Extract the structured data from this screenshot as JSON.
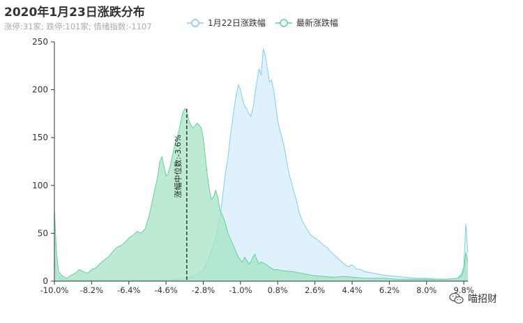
{
  "chart_data": {
    "type": "area",
    "title": "2020年1月23日涨跌分布",
    "subtitle": "涨停:31家; 跌停:101家; 情绪指数:-1107",
    "x_ticks": [
      "-10.0%",
      "-8.2%",
      "-6.4%",
      "-4.6%",
      "-2.8%",
      "-1.0%",
      "0.8%",
      "2.6%",
      "4.4%",
      "6.2%",
      "8.0%",
      "9.8%"
    ],
    "y_ticks": [
      "0",
      "50",
      "100",
      "150",
      "200",
      "250"
    ],
    "xlim": [
      -10.0,
      10.0
    ],
    "ylim": [
      0,
      250
    ],
    "median_line": {
      "x": -3.6,
      "label": "涨幅中位数:-3.6%"
    },
    "series": [
      {
        "name": "1月22日涨跌幅",
        "color": "#80cdf0",
        "fill": "#ddf1fb",
        "points": [
          [
            -10.0,
            28
          ],
          [
            -9.9,
            8
          ],
          [
            -9.7,
            3
          ],
          [
            -9.3,
            1
          ],
          [
            -8.5,
            1
          ],
          [
            -7.5,
            1
          ],
          [
            -6.5,
            1
          ],
          [
            -5.5,
            1
          ],
          [
            -4.5,
            1
          ],
          [
            -4.0,
            2
          ],
          [
            -3.6,
            3
          ],
          [
            -3.3,
            5
          ],
          [
            -3.0,
            8
          ],
          [
            -2.8,
            12
          ],
          [
            -2.6,
            20
          ],
          [
            -2.4,
            32
          ],
          [
            -2.2,
            45
          ],
          [
            -2.0,
            65
          ],
          [
            -1.9,
            82
          ],
          [
            -1.8,
            100
          ],
          [
            -1.7,
            117
          ],
          [
            -1.6,
            130
          ],
          [
            -1.5,
            150
          ],
          [
            -1.4,
            165
          ],
          [
            -1.3,
            182
          ],
          [
            -1.2,
            195
          ],
          [
            -1.1,
            205
          ],
          [
            -1.0,
            200
          ],
          [
            -0.9,
            190
          ],
          [
            -0.8,
            183
          ],
          [
            -0.7,
            180
          ],
          [
            -0.6,
            175
          ],
          [
            -0.5,
            172
          ],
          [
            -0.4,
            180
          ],
          [
            -0.3,
            195
          ],
          [
            -0.2,
            210
          ],
          [
            -0.1,
            222
          ],
          [
            0.0,
            215
          ],
          [
            0.1,
            243
          ],
          [
            0.2,
            236
          ],
          [
            0.3,
            222
          ],
          [
            0.4,
            208
          ],
          [
            0.5,
            210
          ],
          [
            0.6,
            200
          ],
          [
            0.7,
            185
          ],
          [
            0.8,
            168
          ],
          [
            0.9,
            158
          ],
          [
            1.0,
            150
          ],
          [
            1.1,
            142
          ],
          [
            1.2,
            130
          ],
          [
            1.3,
            118
          ],
          [
            1.4,
            108
          ],
          [
            1.5,
            100
          ],
          [
            1.6,
            92
          ],
          [
            1.7,
            85
          ],
          [
            1.8,
            75
          ],
          [
            1.9,
            68
          ],
          [
            2.0,
            62
          ],
          [
            2.2,
            55
          ],
          [
            2.4,
            48
          ],
          [
            2.6,
            45
          ],
          [
            2.8,
            42
          ],
          [
            3.0,
            38
          ],
          [
            3.2,
            35
          ],
          [
            3.4,
            30
          ],
          [
            3.6,
            26
          ],
          [
            3.8,
            22
          ],
          [
            4.0,
            18
          ],
          [
            4.2,
            15
          ],
          [
            4.4,
            17
          ],
          [
            4.6,
            13
          ],
          [
            4.8,
            12
          ],
          [
            5.0,
            10
          ],
          [
            5.5,
            8
          ],
          [
            6.0,
            6
          ],
          [
            6.5,
            5
          ],
          [
            7.0,
            4
          ],
          [
            7.5,
            3
          ],
          [
            8.0,
            3
          ],
          [
            8.5,
            2
          ],
          [
            9.0,
            2
          ],
          [
            9.5,
            3
          ],
          [
            9.7,
            8
          ],
          [
            9.8,
            15
          ],
          [
            9.9,
            60
          ],
          [
            10.0,
            30
          ]
        ]
      },
      {
        "name": "最新涨跌幅",
        "color": "#5fd39b",
        "fill": "#a6e3c3",
        "points": [
          [
            -10.0,
            75
          ],
          [
            -9.9,
            30
          ],
          [
            -9.8,
            10
          ],
          [
            -9.6,
            5
          ],
          [
            -9.4,
            3
          ],
          [
            -9.2,
            6
          ],
          [
            -9.0,
            8
          ],
          [
            -8.8,
            12
          ],
          [
            -8.6,
            10
          ],
          [
            -8.4,
            8
          ],
          [
            -8.2,
            12
          ],
          [
            -8.0,
            14
          ],
          [
            -7.8,
            18
          ],
          [
            -7.6,
            22
          ],
          [
            -7.4,
            25
          ],
          [
            -7.2,
            30
          ],
          [
            -7.0,
            35
          ],
          [
            -6.8,
            37
          ],
          [
            -6.6,
            40
          ],
          [
            -6.4,
            45
          ],
          [
            -6.2,
            48
          ],
          [
            -6.0,
            52
          ],
          [
            -5.8,
            50
          ],
          [
            -5.6,
            55
          ],
          [
            -5.4,
            70
          ],
          [
            -5.2,
            90
          ],
          [
            -5.0,
            110
          ],
          [
            -4.9,
            125
          ],
          [
            -4.8,
            130
          ],
          [
            -4.7,
            120
          ],
          [
            -4.6,
            110
          ],
          [
            -4.5,
            112
          ],
          [
            -4.4,
            120
          ],
          [
            -4.3,
            130
          ],
          [
            -4.2,
            140
          ],
          [
            -4.1,
            148
          ],
          [
            -4.0,
            155
          ],
          [
            -3.9,
            165
          ],
          [
            -3.8,
            175
          ],
          [
            -3.7,
            180
          ],
          [
            -3.6,
            178
          ],
          [
            -3.5,
            168
          ],
          [
            -3.4,
            163
          ],
          [
            -3.3,
            160
          ],
          [
            -3.2,
            162
          ],
          [
            -3.1,
            165
          ],
          [
            -3.0,
            163
          ],
          [
            -2.9,
            160
          ],
          [
            -2.8,
            150
          ],
          [
            -2.7,
            130
          ],
          [
            -2.6,
            110
          ],
          [
            -2.5,
            95
          ],
          [
            -2.4,
            85
          ],
          [
            -2.3,
            88
          ],
          [
            -2.2,
            95
          ],
          [
            -2.1,
            88
          ],
          [
            -2.0,
            75
          ],
          [
            -1.9,
            70
          ],
          [
            -1.8,
            65
          ],
          [
            -1.7,
            58
          ],
          [
            -1.6,
            50
          ],
          [
            -1.5,
            45
          ],
          [
            -1.4,
            40
          ],
          [
            -1.3,
            35
          ],
          [
            -1.2,
            30
          ],
          [
            -1.1,
            25
          ],
          [
            -1.0,
            22
          ],
          [
            -0.9,
            20
          ],
          [
            -0.8,
            25
          ],
          [
            -0.7,
            22
          ],
          [
            -0.6,
            18
          ],
          [
            -0.5,
            20
          ],
          [
            -0.4,
            25
          ],
          [
            -0.3,
            28
          ],
          [
            -0.2,
            22
          ],
          [
            -0.1,
            18
          ],
          [
            0.0,
            20
          ],
          [
            0.2,
            18
          ],
          [
            0.4,
            15
          ],
          [
            0.6,
            12
          ],
          [
            0.8,
            12
          ],
          [
            1.0,
            11
          ],
          [
            1.5,
            10
          ],
          [
            2.0,
            8
          ],
          [
            2.5,
            6
          ],
          [
            3.0,
            5
          ],
          [
            3.5,
            4
          ],
          [
            4.0,
            5
          ],
          [
            4.5,
            4
          ],
          [
            5.0,
            3
          ],
          [
            5.5,
            3
          ],
          [
            6.0,
            3
          ],
          [
            6.5,
            2
          ],
          [
            7.0,
            2
          ],
          [
            7.5,
            2
          ],
          [
            8.0,
            2
          ],
          [
            8.5,
            2
          ],
          [
            9.0,
            2
          ],
          [
            9.5,
            3
          ],
          [
            9.7,
            6
          ],
          [
            9.8,
            12
          ],
          [
            9.9,
            30
          ],
          [
            10.0,
            20
          ]
        ]
      }
    ],
    "grid": false,
    "legend_position": "top-center"
  },
  "watermark": {
    "text": "喵招财",
    "icon": "wechat-icon"
  }
}
